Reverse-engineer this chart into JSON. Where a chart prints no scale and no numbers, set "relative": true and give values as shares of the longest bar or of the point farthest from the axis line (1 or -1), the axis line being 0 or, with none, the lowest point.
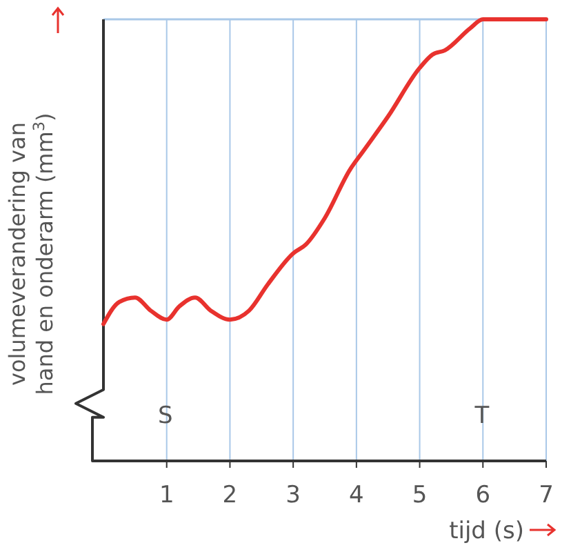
{
  "chart_data": {
    "type": "line",
    "relative": true,
    "xlabel": "tijd (s)",
    "ylabel": "volumeverandering van hand en onderarm (mm$^{3}$)",
    "xlim": [
      0,
      7
    ],
    "xticks": [
      1,
      2,
      3,
      4,
      5,
      6,
      7
    ],
    "grid": "x",
    "marker": "none",
    "line_style": "solid",
    "x": [
      0,
      0.25,
      0.5,
      0.75,
      1,
      1.2,
      1.45,
      1.7,
      2,
      2.3,
      2.6,
      3,
      3.2,
      3.5,
      3.9,
      4.1,
      4.5,
      5,
      5.2,
      5.4,
      5.8,
      6,
      7
    ],
    "series": [
      {
        "color": "#e8322e",
        "values": [
          0.31,
          0.36,
          0.37,
          0.34,
          0.32,
          0.35,
          0.37,
          0.34,
          0.32,
          0.34,
          0.4,
          0.47,
          0.49,
          0.55,
          0.66,
          0.7,
          0.78,
          0.89,
          0.92,
          0.93,
          0.98,
          1,
          1
        ]
      }
    ],
    "ref_lines": [
      {
        "axis": "y",
        "value": 1,
        "color": "#a9c8e8"
      }
    ],
    "annotations": [
      "S",
      "T"
    ]
  }
}
